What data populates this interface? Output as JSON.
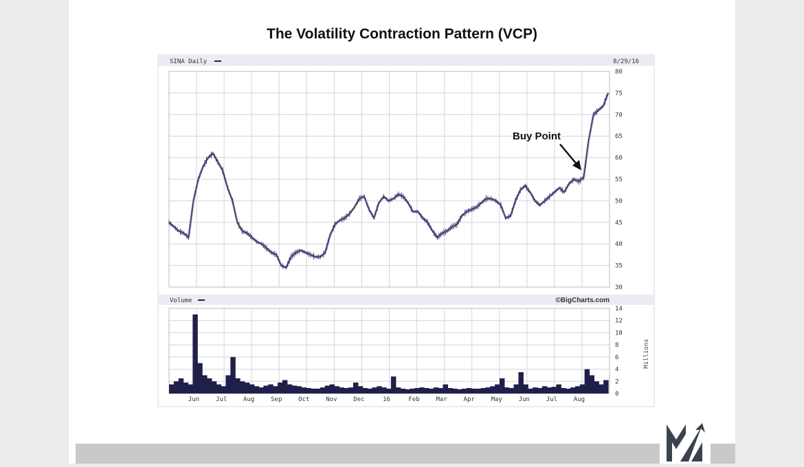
{
  "title": "The Volatility Contraction Pattern (VCP)",
  "chart_data": [
    {
      "type": "line",
      "panel_label": "SINA Daily",
      "date_label": "8/29/16",
      "ylim": [
        30,
        80
      ],
      "y_ticks": [
        30,
        35,
        40,
        45,
        50,
        55,
        60,
        65,
        70,
        75,
        80
      ],
      "grid": true,
      "annotation": "Buy Point",
      "series": [
        {
          "values": [
            45,
            44,
            43,
            42.5,
            41.5,
            50,
            55,
            58,
            60,
            61,
            59,
            57,
            53,
            50,
            45,
            43,
            42.5,
            41.5,
            40.5,
            40,
            39,
            38,
            37.5,
            35,
            34.5,
            37,
            38,
            38.5,
            38,
            37.5,
            37,
            37,
            38,
            42,
            44.5,
            45.5,
            46,
            47,
            48.5,
            50.5,
            51,
            48,
            46,
            49.5,
            51,
            50,
            50.5,
            51.5,
            51,
            49.5,
            47.5,
            47.5,
            46,
            45,
            43,
            41.5,
            42.5,
            43,
            44,
            44.5,
            46.5,
            47.5,
            48,
            48.5,
            49.5,
            50.5,
            50.5,
            50,
            49,
            46,
            46.5,
            50,
            52.5,
            53.5,
            52,
            50,
            49,
            50,
            51,
            52,
            53,
            52,
            54,
            55,
            54.5,
            55.5,
            64,
            70,
            71,
            72,
            75
          ]
        }
      ]
    },
    {
      "type": "bar",
      "panel_label": "Volume",
      "source": "©BigCharts.com",
      "ylim": [
        0,
        14
      ],
      "y_ticks": [
        0,
        2,
        4,
        6,
        8,
        10,
        12,
        14
      ],
      "ylabel": "Millions",
      "x_ticks": [
        "Jun",
        "Jul",
        "Aug",
        "Sep",
        "Oct",
        "Nov",
        "Dec",
        "16",
        "Feb",
        "Mar",
        "Apr",
        "May",
        "Jun",
        "Jul",
        "Aug"
      ],
      "grid": true,
      "series": [
        {
          "values": [
            1.5,
            2,
            2.5,
            1.8,
            1.5,
            13,
            5,
            3,
            2.5,
            2,
            1.5,
            1.2,
            3,
            6,
            2.5,
            2,
            1.8,
            1.5,
            1.2,
            1,
            1.3,
            1.5,
            1.2,
            1.8,
            2.2,
            1.5,
            1.3,
            1.2,
            1,
            0.9,
            0.8,
            0.8,
            1,
            1.3,
            1.5,
            1.2,
            1,
            0.9,
            1,
            1.8,
            1.2,
            0.9,
            0.8,
            1,
            1.2,
            1,
            0.8,
            2.8,
            1,
            0.8,
            0.7,
            0.8,
            0.9,
            1,
            0.9,
            0.8,
            1,
            0.9,
            1.5,
            0.9,
            0.8,
            0.7,
            0.8,
            0.9,
            0.8,
            0.8,
            0.9,
            1,
            1.2,
            1.5,
            2.5,
            1,
            0.9,
            1.5,
            3.5,
            1.5,
            0.8,
            1,
            0.9,
            1.2,
            1,
            1.1,
            1.5,
            0.9,
            0.8,
            1,
            1.2,
            1.5,
            4,
            3,
            2,
            1.5,
            2.2
          ]
        }
      ]
    }
  ]
}
